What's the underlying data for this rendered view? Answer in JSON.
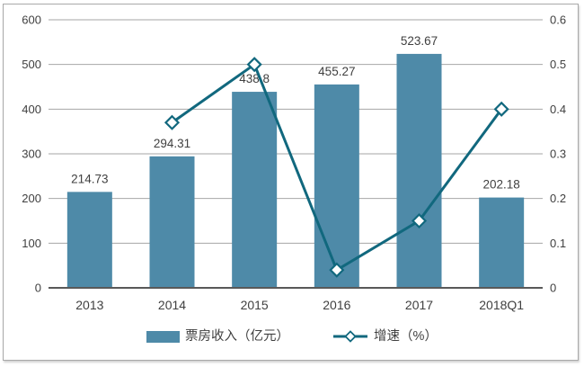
{
  "chart_data": {
    "type": "combo-bar-line",
    "title": "",
    "categories": [
      "2013",
      "2014",
      "2015",
      "2016",
      "2017",
      "2018Q1"
    ],
    "series": [
      {
        "name": "票房收入（亿元）",
        "type": "bar",
        "axis": "left",
        "values": [
          214.73,
          294.31,
          438.8,
          455.27,
          523.67,
          202.18
        ],
        "labels": [
          "214.73",
          "294.31",
          "438.8",
          "455.27",
          "523.67",
          "202.18"
        ]
      },
      {
        "name": "增速（%）",
        "type": "line",
        "marker": "diamond",
        "axis": "right",
        "values": [
          null,
          0.37,
          0.5,
          0.04,
          0.15,
          0.4
        ]
      }
    ],
    "left_axis": {
      "min": 0,
      "max": 600,
      "step": 100,
      "tick_labels": [
        "0",
        "100",
        "200",
        "300",
        "400",
        "500",
        "600"
      ]
    },
    "right_axis": {
      "min": 0,
      "max": 0.6,
      "step": 0.1,
      "tick_labels": [
        "0",
        "0.1",
        "0.2",
        "0.3",
        "0.4",
        "0.5",
        "0.6"
      ]
    },
    "grid": true,
    "legend_position": "bottom",
    "legend": [
      {
        "label": "票房收入（亿元）",
        "marker": "bar-swatch"
      },
      {
        "label": "增速（%）",
        "marker": "line-diamond"
      }
    ],
    "colors": {
      "bar": "#4E8AA8",
      "line": "#11687E",
      "marker_fill": "#FFFFFF",
      "grid": "#A6A6A6",
      "axis_line": "#595959",
      "text": "#404040",
      "frame_border": "#A9A9A9"
    }
  }
}
